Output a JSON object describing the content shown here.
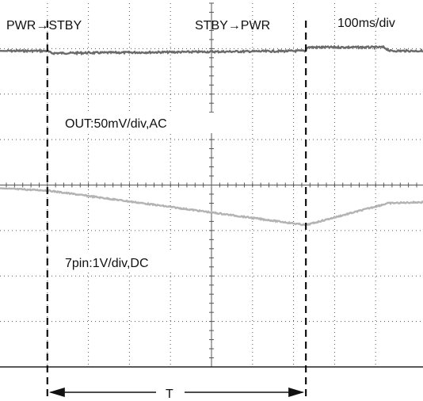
{
  "chart_data": {
    "type": "line",
    "top_labels": {
      "left_event": "PWR→STBY",
      "right_event": "STBY→PWR",
      "timebase": "100ms/div"
    },
    "channel_labels": {
      "out": "OUT:50mV/div,AC",
      "pin7": "7pin:1V/div,DC"
    },
    "interval_label": "T",
    "grid": {
      "x_divisions": 10,
      "y_divisions": 8,
      "dotted": true
    },
    "series": [
      {
        "name": "OUT:50mV/div,AC",
        "color": "#6a6a6a",
        "noise": 2.2,
        "x": [
          0,
          1.0,
          1.1,
          7.3,
          7.32,
          9.2,
          9.35,
          10.0
        ],
        "y": [
          6.95,
          6.95,
          6.9,
          6.95,
          7.03,
          7.03,
          6.95,
          6.95
        ]
      },
      {
        "name": "7pin:1V/div,DC",
        "color": "#b3b3b3",
        "noise": 1.6,
        "x": [
          0,
          1.0,
          7.3,
          9.3,
          10.0
        ],
        "y": [
          3.92,
          3.88,
          3.12,
          3.6,
          3.62
        ]
      }
    ],
    "markers_x": [
      1.0,
      7.3
    ]
  },
  "colors": {
    "grid": "#555555",
    "frame": "#222222",
    "markers": "#111111"
  }
}
